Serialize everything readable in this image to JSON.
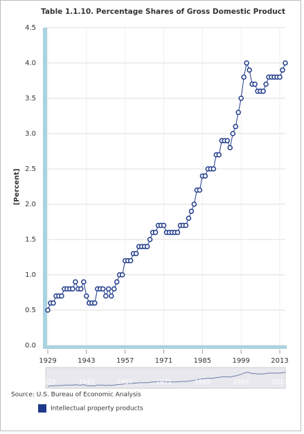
{
  "chart_data": {
    "type": "line",
    "title": "Table 1.1.10. Percentage Shares of Gross Domestic Product",
    "y_label": "[Percent]",
    "source": "Source: U.S. Bureau of Economic Analysis",
    "x": [
      1929,
      1930,
      1931,
      1932,
      1933,
      1934,
      1935,
      1936,
      1937,
      1938,
      1939,
      1940,
      1941,
      1942,
      1943,
      1944,
      1945,
      1946,
      1947,
      1948,
      1949,
      1950,
      1951,
      1952,
      1953,
      1954,
      1955,
      1956,
      1957,
      1958,
      1959,
      1960,
      1961,
      1962,
      1963,
      1964,
      1965,
      1966,
      1967,
      1968,
      1969,
      1970,
      1971,
      1972,
      1973,
      1974,
      1975,
      1976,
      1977,
      1978,
      1979,
      1980,
      1981,
      1982,
      1983,
      1984,
      1985,
      1986,
      1987,
      1988,
      1989,
      1990,
      1991,
      1992,
      1993,
      1994,
      1995,
      1996,
      1997,
      1998,
      1999,
      2000,
      2001,
      2002,
      2003,
      2004,
      2005,
      2006,
      2007,
      2008,
      2009,
      2010,
      2011,
      2012,
      2013,
      2014,
      2015
    ],
    "series": [
      {
        "name": "Intellectual property products",
        "color": "#1f3a8a",
        "values": [
          0.5,
          0.6,
          0.6,
          0.7,
          0.7,
          0.7,
          0.8,
          0.8,
          0.8,
          0.8,
          0.9,
          0.8,
          0.8,
          0.9,
          0.7,
          0.6,
          0.6,
          0.6,
          0.8,
          0.8,
          0.8,
          0.7,
          0.8,
          0.7,
          0.8,
          0.9,
          1.0,
          1.0,
          1.2,
          1.2,
          1.2,
          1.3,
          1.3,
          1.4,
          1.4,
          1.4,
          1.4,
          1.5,
          1.6,
          1.6,
          1.7,
          1.7,
          1.7,
          1.6,
          1.6,
          1.6,
          1.6,
          1.6,
          1.7,
          1.7,
          1.7,
          1.8,
          1.9,
          2.0,
          2.2,
          2.2,
          2.4,
          2.4,
          2.5,
          2.5,
          2.5,
          2.7,
          2.7,
          2.9,
          2.9,
          2.9,
          2.8,
          3.0,
          3.1,
          3.3,
          3.5,
          3.8,
          4.0,
          3.9,
          3.7,
          3.7,
          3.6,
          3.6,
          3.6,
          3.7,
          3.8,
          3.8,
          3.8,
          3.8,
          3.8,
          3.9,
          4.0
        ]
      }
    ],
    "xlim": [
      1929,
      2015
    ],
    "xticks": [
      1929,
      1943,
      1957,
      1971,
      1985,
      1999,
      2013
    ],
    "ylim": [
      0,
      4.5
    ],
    "yticks": [
      {
        "value": 0,
        "label": "0.0"
      },
      0.5,
      {
        "value": 1,
        "label": "1.0"
      },
      1.5,
      {
        "value": 2,
        "label": "2.0"
      },
      2.5,
      {
        "value": 3,
        "label": "3.0"
      },
      3.5,
      {
        "value": 4,
        "label": "4.0"
      },
      4.5
    ],
    "grid": true
  }
}
